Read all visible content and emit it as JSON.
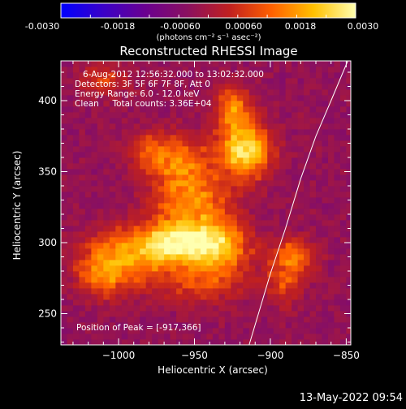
{
  "colorbar": {
    "ticks": [
      "-0.0030",
      "-0.0018",
      "-0.00060",
      "0.00060",
      "0.0018",
      "0.0030"
    ],
    "unit_label": "(photons cm⁻² s⁻¹ asec⁻²)",
    "range": [
      -0.003,
      0.003
    ],
    "colors": [
      "#0000ff",
      "#3a00c8",
      "#6a0090",
      "#8a1060",
      "#c02020",
      "#ff6000",
      "#ffc000",
      "#ffffb0"
    ]
  },
  "chart_data": {
    "type": "heatmap",
    "title": "Reconstructed RHESSI Image",
    "xlabel": "Heliocentric X (arcsec)",
    "ylabel": "Heliocentric Y (arcsec)",
    "xlim": [
      -1038,
      -847
    ],
    "ylim": [
      228,
      428
    ],
    "xticks": [
      -1000,
      -950,
      -900,
      -850
    ],
    "yticks": [
      250,
      300,
      350,
      400
    ],
    "xtick_labels": [
      "−1000",
      "−950",
      "−900",
      "−850"
    ],
    "ytick_labels": [
      "250",
      "300",
      "350",
      "400"
    ],
    "annotations": [
      "6-Aug-2012 12:56:32.000 to 13:02:32.000",
      "Detectors: 3F 5F 6F 7F 8F, Att 0",
      "Energy Range: 6.0 - 12.0 keV",
      "Clean     Total counts: 3.36E+04"
    ],
    "peak_label": "Position of Peak = [-917,366]",
    "peak": [
      -917,
      366
    ],
    "limb_curve": [
      [
        -914,
        228
      ],
      [
        -900,
        278
      ],
      [
        -890,
        310
      ],
      [
        -880,
        345
      ],
      [
        -870,
        375
      ],
      [
        -860,
        400
      ],
      [
        -849,
        428
      ]
    ],
    "blobs": [
      {
        "x": -917,
        "y": 366,
        "sx": 12,
        "sy": 14,
        "a": 0.003
      },
      {
        "x": -925,
        "y": 396,
        "sx": 8,
        "sy": 10,
        "a": 0.0018
      },
      {
        "x": -960,
        "y": 355,
        "sx": 14,
        "sy": 14,
        "a": 0.0016
      },
      {
        "x": -980,
        "y": 365,
        "sx": 10,
        "sy": 9,
        "a": 0.0012
      },
      {
        "x": -950,
        "y": 325,
        "sx": 18,
        "sy": 16,
        "a": 0.0018
      },
      {
        "x": -965,
        "y": 300,
        "sx": 14,
        "sy": 10,
        "a": 0.0024
      },
      {
        "x": -935,
        "y": 298,
        "sx": 14,
        "sy": 11,
        "a": 0.0024
      },
      {
        "x": -995,
        "y": 292,
        "sx": 18,
        "sy": 14,
        "a": 0.0018
      },
      {
        "x": -1010,
        "y": 278,
        "sx": 12,
        "sy": 12,
        "a": 0.0014
      },
      {
        "x": -945,
        "y": 275,
        "sx": 22,
        "sy": 12,
        "a": 0.0013
      },
      {
        "x": -885,
        "y": 290,
        "sx": 10,
        "sy": 9,
        "a": 0.0018
      },
      {
        "x": -890,
        "y": 270,
        "sx": 8,
        "sy": 10,
        "a": 0.001
      },
      {
        "x": -1010,
        "y": 415,
        "sx": 12,
        "sy": 8,
        "a": 0.001
      }
    ]
  },
  "footer": {
    "timestamp": "13-May-2022 09:54"
  }
}
